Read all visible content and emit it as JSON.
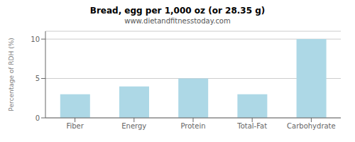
{
  "chart_data": {
    "type": "bar",
    "title": "Bread, egg per 1,000 oz (or 28.35 g)",
    "subtitle": "www.dietandfitnesstoday.com",
    "categories": [
      "Fiber",
      "Energy",
      "Protein",
      "Total-Fat",
      "Carbohydrate"
    ],
    "values": [
      3.0,
      4.0,
      5.0,
      3.0,
      10.0
    ],
    "color": "#add8e6",
    "ylabel": "Percentage of RDH (%)",
    "ylim": [
      0,
      11
    ],
    "yticks": [
      0,
      5,
      10
    ],
    "grid": true
  }
}
